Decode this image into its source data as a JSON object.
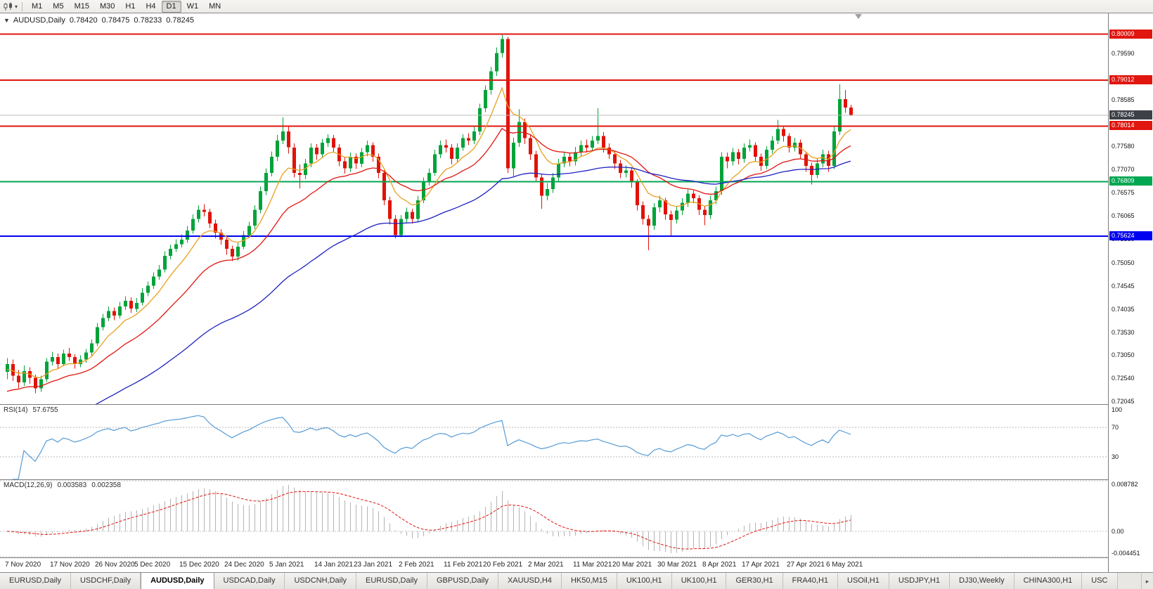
{
  "toolbar": {
    "timeframes": [
      "M1",
      "M5",
      "M15",
      "M30",
      "H1",
      "H4",
      "D1",
      "W1",
      "MN"
    ],
    "active": "D1"
  },
  "chart": {
    "title": "AUDUSD,Daily",
    "open": "0.78420",
    "high": "0.78475",
    "low": "0.78233",
    "close": "0.78245",
    "current_price": "0.78245",
    "levels": [
      {
        "price": 0.80009,
        "label": "0.80009",
        "color": "#e0160f"
      },
      {
        "price": 0.79012,
        "label": "0.79012",
        "color": "#e0160f"
      },
      {
        "price": 0.78014,
        "label": "0.78014",
        "color": "#e0160f"
      },
      {
        "price": 0.76809,
        "label": "0.76809",
        "color": "#00a651"
      },
      {
        "price": 0.75624,
        "label": "0.75624",
        "color": "#0000f0"
      }
    ],
    "axis_ticks": [
      "0.79590",
      "0.78585",
      "0.77580",
      "0.77070",
      "0.76575",
      "0.76065",
      "0.75560",
      "0.75050",
      "0.74545",
      "0.74035",
      "0.73530",
      "0.73050",
      "0.72540",
      "0.72045"
    ]
  },
  "indicators": {
    "rsi": {
      "name": "RSI(14)",
      "value": "57.6755",
      "levels": [
        "100",
        "70",
        "30"
      ],
      "period": 14
    },
    "macd": {
      "name": "MACD(12,26,9)",
      "value": "0.003583",
      "signal": "0.002358",
      "axis": [
        "0.008782",
        "0.00",
        "-0.004451"
      ],
      "fast": 12,
      "slow": 26,
      "smoothing": 9
    }
  },
  "chart_data": {
    "type": "candlestick",
    "symbol": "AUDUSD",
    "timeframe": "Daily",
    "moving_averages": [
      {
        "period": 8,
        "color": "#e8a020",
        "seed": 0.727
      },
      {
        "period": 21,
        "color": "#e0160f",
        "seed": 0.722
      },
      {
        "period": 55,
        "color": "#2020c0",
        "seed": 0.712
      }
    ],
    "date_labels": [
      {
        "i": 0,
        "label": "7 Nov 2020"
      },
      {
        "i": 8,
        "label": "17 Nov 2020"
      },
      {
        "i": 16,
        "label": "26 Nov 2020"
      },
      {
        "i": 23,
        "label": "5 Dec 2020"
      },
      {
        "i": 31,
        "label": "15 Dec 2020"
      },
      {
        "i": 39,
        "label": "24 Dec 2020"
      },
      {
        "i": 47,
        "label": "5 Jan 2021"
      },
      {
        "i": 55,
        "label": "14 Jan 2021"
      },
      {
        "i": 62,
        "label": "23 Jan 2021"
      },
      {
        "i": 70,
        "label": "2 Feb 2021"
      },
      {
        "i": 78,
        "label": "11 Feb 2021"
      },
      {
        "i": 85,
        "label": "20 Feb 2021"
      },
      {
        "i": 93,
        "label": "2 Mar 2021"
      },
      {
        "i": 101,
        "label": "11 Mar 2021"
      },
      {
        "i": 108,
        "label": "20 Mar 2021"
      },
      {
        "i": 116,
        "label": "30 Mar 2021"
      },
      {
        "i": 124,
        "label": "8 Apr 2021"
      },
      {
        "i": 131,
        "label": "17 Apr 2021"
      },
      {
        "i": 139,
        "label": "27 Apr 2021"
      },
      {
        "i": 146,
        "label": "6 May 2021"
      }
    ],
    "candles": [
      [
        0.7268,
        0.7298,
        0.7252,
        0.7285
      ],
      [
        0.7285,
        0.7295,
        0.7248,
        0.726
      ],
      [
        0.726,
        0.7272,
        0.7232,
        0.7245
      ],
      [
        0.7245,
        0.7282,
        0.7238,
        0.727
      ],
      [
        0.727,
        0.7278,
        0.7242,
        0.7255
      ],
      [
        0.7255,
        0.7262,
        0.7222,
        0.7232
      ],
      [
        0.7232,
        0.726,
        0.7225,
        0.7252
      ],
      [
        0.7252,
        0.7298,
        0.7246,
        0.729
      ],
      [
        0.729,
        0.7312,
        0.7282,
        0.73
      ],
      [
        0.73,
        0.7308,
        0.7276,
        0.7285
      ],
      [
        0.7285,
        0.7316,
        0.728,
        0.7308
      ],
      [
        0.7308,
        0.732,
        0.7292,
        0.73
      ],
      [
        0.73,
        0.7306,
        0.7275,
        0.7285
      ],
      [
        0.7285,
        0.7304,
        0.7278,
        0.7295
      ],
      [
        0.7295,
        0.7318,
        0.7288,
        0.731
      ],
      [
        0.731,
        0.7338,
        0.7302,
        0.733
      ],
      [
        0.733,
        0.7374,
        0.7324,
        0.7365
      ],
      [
        0.7365,
        0.7394,
        0.7358,
        0.7385
      ],
      [
        0.7385,
        0.741,
        0.7378,
        0.74
      ],
      [
        0.74,
        0.7408,
        0.738,
        0.739
      ],
      [
        0.739,
        0.742,
        0.7384,
        0.741
      ],
      [
        0.741,
        0.7432,
        0.7402,
        0.7422
      ],
      [
        0.7422,
        0.743,
        0.7396,
        0.7405
      ],
      [
        0.7405,
        0.7428,
        0.7398,
        0.7418
      ],
      [
        0.7418,
        0.745,
        0.7412,
        0.744
      ],
      [
        0.744,
        0.7464,
        0.7432,
        0.7455
      ],
      [
        0.7455,
        0.7484,
        0.7448,
        0.7475
      ],
      [
        0.7475,
        0.75,
        0.7468,
        0.749
      ],
      [
        0.749,
        0.753,
        0.7484,
        0.752
      ],
      [
        0.752,
        0.7544,
        0.7512,
        0.7535
      ],
      [
        0.7535,
        0.7556,
        0.7528,
        0.7545
      ],
      [
        0.7545,
        0.7566,
        0.7538,
        0.7555
      ],
      [
        0.7555,
        0.7585,
        0.7548,
        0.7575
      ],
      [
        0.7575,
        0.761,
        0.7568,
        0.76
      ],
      [
        0.76,
        0.763,
        0.7592,
        0.762
      ],
      [
        0.762,
        0.7632,
        0.7605,
        0.7615
      ],
      [
        0.7615,
        0.7622,
        0.758,
        0.759
      ],
      [
        0.759,
        0.7598,
        0.7558,
        0.757
      ],
      [
        0.757,
        0.7578,
        0.7544,
        0.7555
      ],
      [
        0.7555,
        0.7562,
        0.7522,
        0.7535
      ],
      [
        0.7535,
        0.7542,
        0.7508,
        0.7518
      ],
      [
        0.7518,
        0.7548,
        0.751,
        0.754
      ],
      [
        0.754,
        0.7574,
        0.7534,
        0.7565
      ],
      [
        0.7565,
        0.7594,
        0.7558,
        0.7585
      ],
      [
        0.7585,
        0.763,
        0.7578,
        0.762
      ],
      [
        0.762,
        0.767,
        0.7612,
        0.766
      ],
      [
        0.766,
        0.771,
        0.7652,
        0.77
      ],
      [
        0.77,
        0.7746,
        0.7692,
        0.7735
      ],
      [
        0.7735,
        0.7782,
        0.7726,
        0.777
      ],
      [
        0.777,
        0.782,
        0.7762,
        0.779
      ],
      [
        0.779,
        0.78,
        0.7742,
        0.7755
      ],
      [
        0.7755,
        0.7764,
        0.769,
        0.77
      ],
      [
        0.77,
        0.7718,
        0.7666,
        0.7695
      ],
      [
        0.7695,
        0.773,
        0.7686,
        0.772
      ],
      [
        0.772,
        0.7764,
        0.7712,
        0.7755
      ],
      [
        0.7755,
        0.7762,
        0.7728,
        0.774
      ],
      [
        0.774,
        0.7774,
        0.7732,
        0.7765
      ],
      [
        0.7765,
        0.7784,
        0.7756,
        0.7775
      ],
      [
        0.7775,
        0.7782,
        0.7745,
        0.7755
      ],
      [
        0.7755,
        0.7762,
        0.7714,
        0.7725
      ],
      [
        0.7725,
        0.7734,
        0.7698,
        0.771
      ],
      [
        0.771,
        0.7744,
        0.7702,
        0.7735
      ],
      [
        0.7735,
        0.7742,
        0.7708,
        0.772
      ],
      [
        0.772,
        0.7754,
        0.7712,
        0.7745
      ],
      [
        0.7745,
        0.777,
        0.7736,
        0.776
      ],
      [
        0.776,
        0.7766,
        0.7724,
        0.7735
      ],
      [
        0.7735,
        0.7742,
        0.7688,
        0.77
      ],
      [
        0.77,
        0.7706,
        0.763,
        0.764
      ],
      [
        0.764,
        0.7648,
        0.7588,
        0.76
      ],
      [
        0.76,
        0.7608,
        0.7558,
        0.7565
      ],
      [
        0.7565,
        0.7608,
        0.756,
        0.76
      ],
      [
        0.76,
        0.7624,
        0.7592,
        0.7615
      ],
      [
        0.7615,
        0.7622,
        0.759,
        0.76
      ],
      [
        0.76,
        0.765,
        0.7594,
        0.764
      ],
      [
        0.764,
        0.769,
        0.7634,
        0.768
      ],
      [
        0.768,
        0.771,
        0.7672,
        0.77
      ],
      [
        0.77,
        0.775,
        0.7694,
        0.774
      ],
      [
        0.774,
        0.777,
        0.7732,
        0.776
      ],
      [
        0.776,
        0.7772,
        0.7744,
        0.7755
      ],
      [
        0.7755,
        0.7762,
        0.7718,
        0.773
      ],
      [
        0.773,
        0.7764,
        0.7722,
        0.7755
      ],
      [
        0.7755,
        0.7784,
        0.7748,
        0.7775
      ],
      [
        0.7775,
        0.7786,
        0.776,
        0.777
      ],
      [
        0.777,
        0.78,
        0.7762,
        0.779
      ],
      [
        0.779,
        0.785,
        0.7782,
        0.784
      ],
      [
        0.784,
        0.789,
        0.7832,
        0.788
      ],
      [
        0.788,
        0.793,
        0.787,
        0.792
      ],
      [
        0.792,
        0.7972,
        0.791,
        0.796
      ],
      [
        0.796,
        0.8001,
        0.795,
        0.799
      ],
      [
        0.799,
        0.7995,
        0.77,
        0.771
      ],
      [
        0.771,
        0.7776,
        0.7692,
        0.7765
      ],
      [
        0.7765,
        0.7838,
        0.7756,
        0.781
      ],
      [
        0.781,
        0.7818,
        0.7762,
        0.7775
      ],
      [
        0.7775,
        0.7784,
        0.7728,
        0.774
      ],
      [
        0.774,
        0.7748,
        0.768,
        0.769
      ],
      [
        0.769,
        0.7698,
        0.7622,
        0.765
      ],
      [
        0.765,
        0.7678,
        0.764,
        0.7665
      ],
      [
        0.7665,
        0.77,
        0.7656,
        0.769
      ],
      [
        0.769,
        0.773,
        0.7682,
        0.772
      ],
      [
        0.772,
        0.7746,
        0.7712,
        0.7735
      ],
      [
        0.7735,
        0.7744,
        0.7714,
        0.7725
      ],
      [
        0.7725,
        0.7756,
        0.7716,
        0.7745
      ],
      [
        0.7745,
        0.777,
        0.7736,
        0.776
      ],
      [
        0.776,
        0.7772,
        0.7744,
        0.7755
      ],
      [
        0.7755,
        0.778,
        0.7746,
        0.777
      ],
      [
        0.777,
        0.784,
        0.7762,
        0.778
      ],
      [
        0.778,
        0.7788,
        0.7744,
        0.7755
      ],
      [
        0.7755,
        0.7764,
        0.773,
        0.774
      ],
      [
        0.774,
        0.7748,
        0.7708,
        0.772
      ],
      [
        0.772,
        0.7728,
        0.7688,
        0.77
      ],
      [
        0.77,
        0.7716,
        0.769,
        0.7705
      ],
      [
        0.7705,
        0.7712,
        0.7668,
        0.768
      ],
      [
        0.768,
        0.7686,
        0.7618,
        0.763
      ],
      [
        0.763,
        0.7638,
        0.7588,
        0.76
      ],
      [
        0.76,
        0.7608,
        0.7532,
        0.7585
      ],
      [
        0.7585,
        0.7634,
        0.7576,
        0.7625
      ],
      [
        0.7625,
        0.765,
        0.7614,
        0.764
      ],
      [
        0.764,
        0.7646,
        0.7598,
        0.761
      ],
      [
        0.761,
        0.7618,
        0.7562,
        0.7598
      ],
      [
        0.7598,
        0.7628,
        0.759,
        0.7618
      ],
      [
        0.7618,
        0.7645,
        0.7608,
        0.7635
      ],
      [
        0.7635,
        0.7664,
        0.7626,
        0.7655
      ],
      [
        0.7655,
        0.7662,
        0.7634,
        0.7645
      ],
      [
        0.7645,
        0.7652,
        0.7608,
        0.762
      ],
      [
        0.762,
        0.7628,
        0.7586,
        0.7608
      ],
      [
        0.7608,
        0.765,
        0.76,
        0.764
      ],
      [
        0.764,
        0.767,
        0.7632,
        0.766
      ],
      [
        0.766,
        0.7745,
        0.7652,
        0.7735
      ],
      [
        0.7735,
        0.7744,
        0.771,
        0.7725
      ],
      [
        0.7725,
        0.7754,
        0.7716,
        0.7745
      ],
      [
        0.7745,
        0.7752,
        0.7718,
        0.773
      ],
      [
        0.773,
        0.7764,
        0.7722,
        0.7755
      ],
      [
        0.7755,
        0.7772,
        0.7746,
        0.776
      ],
      [
        0.776,
        0.7766,
        0.7724,
        0.7735
      ],
      [
        0.7735,
        0.7742,
        0.7704,
        0.7715
      ],
      [
        0.7715,
        0.7758,
        0.7708,
        0.775
      ],
      [
        0.775,
        0.778,
        0.7742,
        0.777
      ],
      [
        0.777,
        0.7815,
        0.7762,
        0.7795
      ],
      [
        0.7795,
        0.7802,
        0.7768,
        0.778
      ],
      [
        0.778,
        0.7786,
        0.7744,
        0.7755
      ],
      [
        0.7755,
        0.7776,
        0.7746,
        0.7765
      ],
      [
        0.7765,
        0.7772,
        0.773,
        0.774
      ],
      [
        0.774,
        0.7746,
        0.7702,
        0.7715
      ],
      [
        0.7715,
        0.7722,
        0.7675,
        0.7695
      ],
      [
        0.7695,
        0.773,
        0.7688,
        0.772
      ],
      [
        0.772,
        0.775,
        0.7712,
        0.774
      ],
      [
        0.774,
        0.7748,
        0.7702,
        0.7715
      ],
      [
        0.7715,
        0.78,
        0.7708,
        0.779
      ],
      [
        0.779,
        0.7892,
        0.7782,
        0.786
      ],
      [
        0.786,
        0.788,
        0.783,
        0.7842
      ],
      [
        0.7842,
        0.78475,
        0.78233,
        0.78245
      ]
    ]
  },
  "tabs": [
    {
      "label": "EURUSD,Daily"
    },
    {
      "label": "USDCHF,Daily"
    },
    {
      "label": "AUDUSD,Daily",
      "active": true
    },
    {
      "label": "USDCAD,Daily"
    },
    {
      "label": "USDCNH,Daily"
    },
    {
      "label": "EURUSD,Daily"
    },
    {
      "label": "GBPUSD,Daily"
    },
    {
      "label": "XAUUSD,H4"
    },
    {
      "label": "HK50,M15"
    },
    {
      "label": "UK100,H1"
    },
    {
      "label": "UK100,H1"
    },
    {
      "label": "GER30,H1"
    },
    {
      "label": "FRA40,H1"
    },
    {
      "label": "USOil,H1"
    },
    {
      "label": "USDJPY,H1"
    },
    {
      "label": "DJ30,Weekly"
    },
    {
      "label": "CHINA300,H1"
    },
    {
      "label": "USC"
    }
  ],
  "colors": {
    "candle_up": "#00a33a",
    "candle_down": "#e01309",
    "rsi_line": "#569bd5",
    "macd_hist": "#b4b4b4",
    "macd_signal": "#e0160f",
    "current_badge": "#3e4047",
    "current_line": "#bcbcbc"
  }
}
